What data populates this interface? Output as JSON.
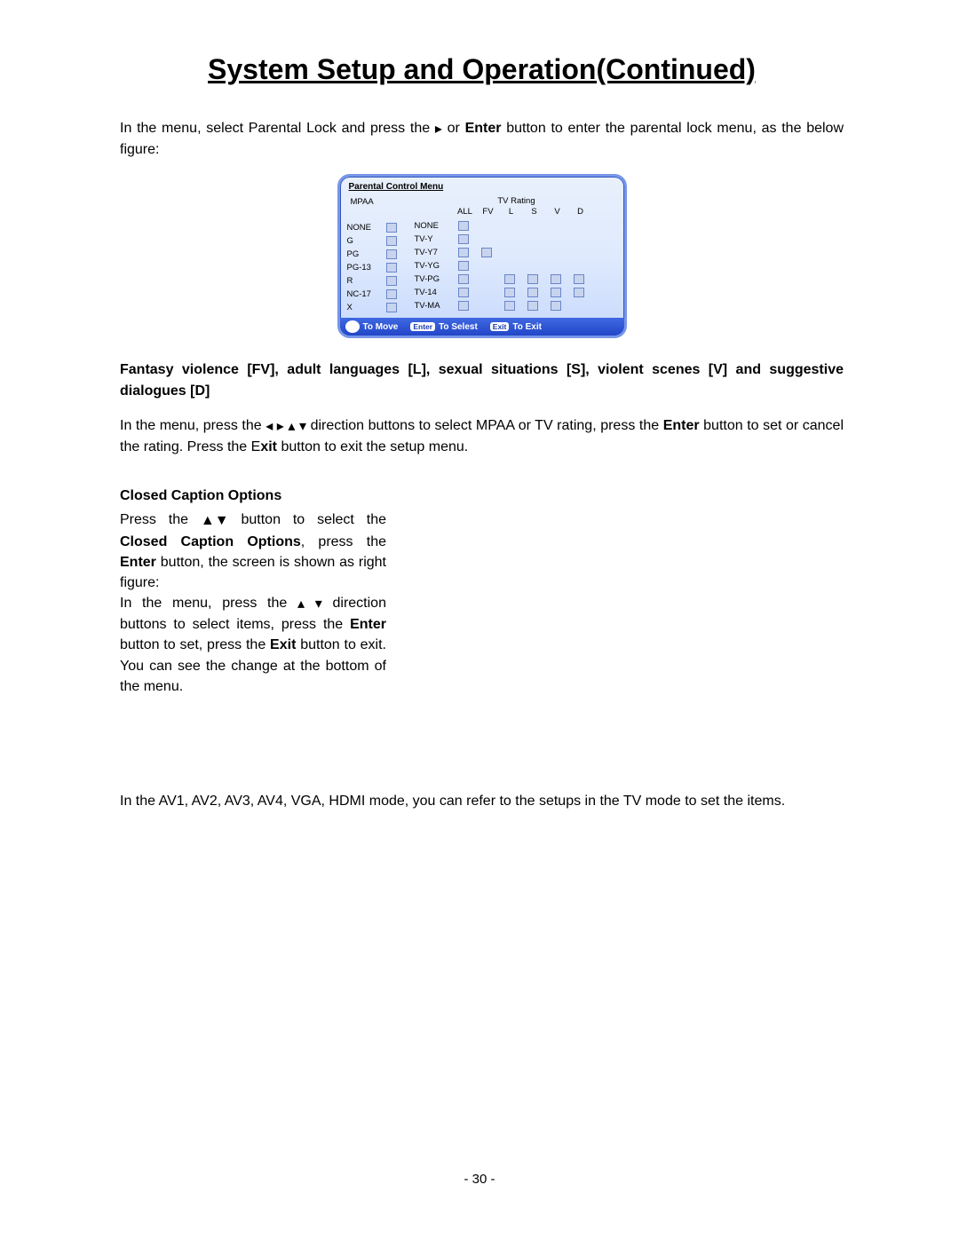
{
  "title": "System Setup and Operation(Continued)",
  "intro_part1": "In the menu, select Parental Lock and press the ",
  "intro_part2": " or ",
  "intro_enter": "Enter",
  "intro_part3": " button to enter the parental lock menu, as the below figure:",
  "menu": {
    "title": "Parental Control Menu",
    "mpaa_header": "MPAA",
    "tv_header": "TV Rating",
    "tv_cols": [
      "ALL",
      "FV",
      "L",
      "S",
      "V",
      "D"
    ],
    "mpaa_rows": [
      "NONE",
      "G",
      "PG",
      "PG-13",
      "R",
      "NC-17",
      "X"
    ],
    "tv_rows": [
      {
        "label": "NONE",
        "cells": [
          1,
          0,
          0,
          0,
          0,
          0
        ]
      },
      {
        "label": "TV-Y",
        "cells": [
          1,
          0,
          0,
          0,
          0,
          0
        ]
      },
      {
        "label": "TV-Y7",
        "cells": [
          1,
          1,
          0,
          0,
          0,
          0
        ]
      },
      {
        "label": "TV-YG",
        "cells": [
          1,
          0,
          0,
          0,
          0,
          0
        ]
      },
      {
        "label": "TV-PG",
        "cells": [
          1,
          0,
          1,
          1,
          1,
          1
        ]
      },
      {
        "label": "TV-14",
        "cells": [
          1,
          0,
          1,
          1,
          1,
          1
        ]
      },
      {
        "label": "TV-MA",
        "cells": [
          1,
          0,
          1,
          1,
          1,
          0
        ]
      }
    ],
    "footer": {
      "move": "To Move",
      "enter_btn": "Enter",
      "select": "To Selest",
      "exit_btn": "Exit",
      "exit": "To Exit"
    },
    "colors": {
      "panel_border": "#7796e8",
      "panel_bg_top": "#e8f0fb",
      "panel_bg_bot": "#c7d9fc",
      "checkbox_fill": "#c8d4ee",
      "checkbox_border": "#6b85c8",
      "footer_bg_top": "#3f68e2",
      "footer_bg_bot": "#2246c8"
    }
  },
  "ratings_desc_bold": "Fantasy violence [FV], adult languages [L], sexual situations [S], violent scenes [V] and suggestive dialogues [D]",
  "para2_part1": "In the menu, press the ",
  "para2_part2": " direction buttons to select MPAA or TV rating, press the ",
  "para2_enter": "Enter",
  "para2_part3": " button to set or cancel the rating. Press the E",
  "para2_xit": "xit",
  "para2_part4": " button to exit the setup menu.",
  "cc_heading": "Closed Caption Options",
  "cc_part1": "Press the ",
  "cc_part2": " button to select the ",
  "cc_bold1": "Closed Caption Options",
  "cc_part3": ", press the ",
  "cc_enter": "Enter",
  "cc_part4": " button, the screen is shown as right figure:",
  "cc_part5a": "In the menu, press the ",
  "cc_part5b": " direction buttons to select items, press the ",
  "cc_enter2": "Enter",
  "cc_part6": " button to set, press the ",
  "cc_exit": "Exit",
  "cc_part7": " button to exit. You can see the change at the bottom of the menu.",
  "av_note": "In the AV1, AV2, AV3, AV4, VGA, HDMI mode, you can refer to the setups in the TV mode to set the items.",
  "page_number": "- 30 -",
  "arrows": {
    "right": "▸",
    "left": "◂",
    "up": "▴",
    "down": "▾",
    "solid_up": "▲",
    "solid_down": "▼"
  }
}
